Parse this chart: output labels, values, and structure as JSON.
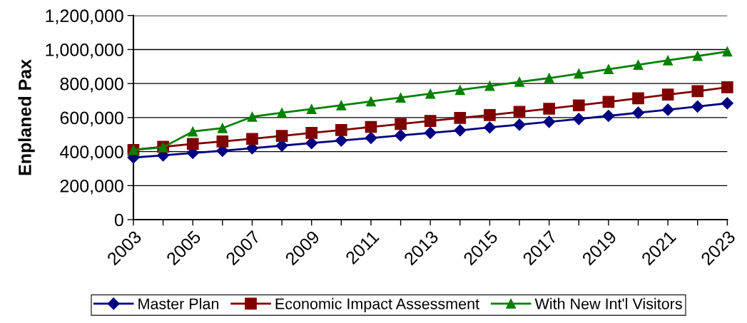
{
  "chart_data": {
    "type": "line",
    "ylabel": "Enplaned Pax",
    "categories": [
      "2003",
      null,
      "2005",
      null,
      "2007",
      null,
      "2009",
      null,
      "2011",
      null,
      "2013",
      null,
      "2015",
      null,
      "2017",
      null,
      "2019",
      null,
      "2021",
      null,
      "2023"
    ],
    "series": [
      {
        "name": "Master Plan",
        "color": "#000080",
        "marker": "diamond",
        "values": [
          365000,
          378000,
          392000,
          405000,
          420000,
          435000,
          450000,
          465000,
          480000,
          495000,
          510000,
          525000,
          542000,
          558000,
          575000,
          592000,
          610000,
          628000,
          646000,
          665000,
          684000
        ]
      },
      {
        "name": "Economic Impact Assessment",
        "color": "#800000",
        "marker": "square",
        "values": [
          410000,
          428000,
          445000,
          460000,
          475000,
          492000,
          510000,
          527000,
          545000,
          562000,
          580000,
          598000,
          615000,
          634000,
          652000,
          672000,
          692000,
          713000,
          735000,
          755000,
          778000
        ]
      },
      {
        "name": "With New Int'l Visitors",
        "color": "#008000",
        "marker": "triangle",
        "values": [
          410000,
          425000,
          518000,
          538000,
          605000,
          628000,
          650000,
          672000,
          695000,
          717000,
          740000,
          762000,
          786000,
          810000,
          832000,
          858000,
          884000,
          910000,
          936000,
          962000,
          988000
        ]
      }
    ],
    "ylim": [
      0,
      1200000
    ],
    "yticks": [
      {
        "value": 0,
        "label": "0"
      },
      {
        "value": 200000,
        "label": "200,000"
      },
      {
        "value": 400000,
        "label": "400,000"
      },
      {
        "value": 600000,
        "label": "600,000"
      },
      {
        "value": 800000,
        "label": "800,000"
      },
      {
        "value": 1000000,
        "label": "1,000,000"
      },
      {
        "value": 1200000,
        "label": "1,200,000"
      }
    ],
    "grid": "y",
    "legend": "bottom",
    "line_style": "solid"
  }
}
